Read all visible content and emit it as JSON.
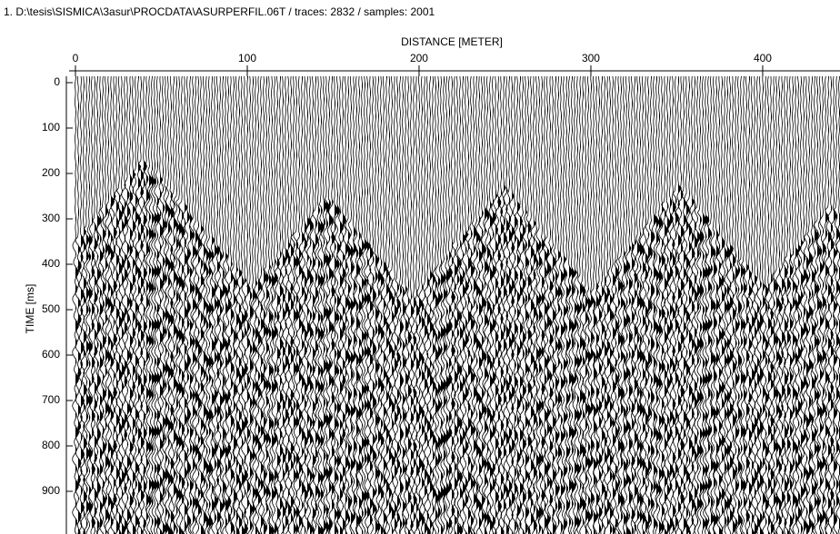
{
  "chart_data": {
    "type": "wiggle",
    "title": "1. D:\\tesis\\SISMICA\\3asur\\PROCDATA\\ASURPERFIL.06T / traces: 2832 / samples: 2001",
    "x_label": "DISTANCE [METER]",
    "y_label": "TIME [ms]",
    "xlim": [
      0,
      445
    ],
    "xticks": [
      0,
      100,
      200,
      300,
      400
    ],
    "ylim": [
      0,
      994
    ],
    "yticks": [
      0,
      100,
      200,
      300,
      400,
      500,
      600,
      700,
      800,
      900
    ]
  }
}
